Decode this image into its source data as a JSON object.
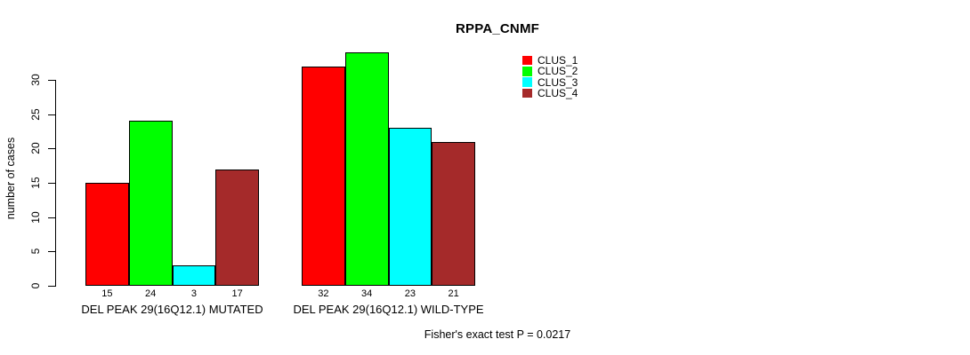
{
  "chart_data": {
    "type": "bar",
    "title": "RPPA_CNMF",
    "ylabel": "number of cases",
    "xlabel": "",
    "yticks": [
      0,
      5,
      10,
      15,
      20,
      25,
      30
    ],
    "ylim": [
      0,
      34
    ],
    "grid": false,
    "legend_position": "top-right",
    "bar_border_color": "#000000",
    "series": [
      {
        "name": "CLUS_1",
        "color": "#FF0000"
      },
      {
        "name": "CLUS_2",
        "color": "#00FF00"
      },
      {
        "name": "CLUS_3",
        "color": "#00FFFF"
      },
      {
        "name": "CLUS_4",
        "color": "#A52A2A"
      }
    ],
    "groups": [
      {
        "label": "DEL PEAK 29(16Q12.1) MUTATED",
        "values": [
          15,
          24,
          3,
          17
        ]
      },
      {
        "label": "DEL PEAK 29(16Q12.1) WILD-TYPE",
        "values": [
          32,
          34,
          23,
          21
        ]
      }
    ],
    "value_labels_shown": true,
    "annotation": "Fisher's exact test P = 0.0217"
  }
}
